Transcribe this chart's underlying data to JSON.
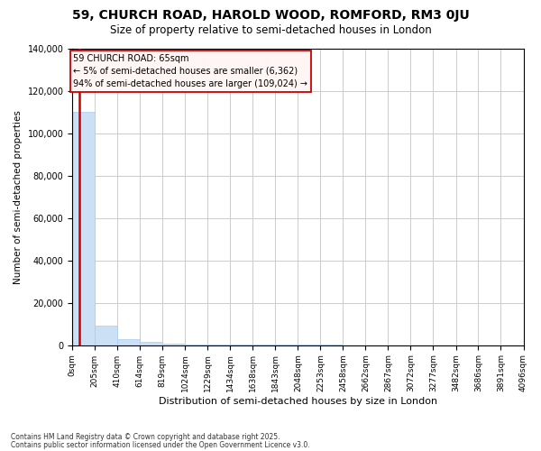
{
  "title": "59, CHURCH ROAD, HAROLD WOOD, ROMFORD, RM3 0JU",
  "subtitle": "Size of property relative to semi-detached houses in London",
  "xlabel": "Distribution of semi-detached houses by size in London",
  "ylabel": "Number of semi-detached properties",
  "footnote1": "Contains HM Land Registry data © Crown copyright and database right 2025.",
  "footnote2": "Contains public sector information licensed under the Open Government Licence v3.0.",
  "annotation_title": "59 CHURCH ROAD: 65sqm",
  "annotation_line1": "← 5% of semi-detached houses are smaller (6,362)",
  "annotation_line2": "94% of semi-detached houses are larger (109,024) →",
  "property_size": 65,
  "bar_color": "#cce0f5",
  "bar_edge_color": "#aaccee",
  "vline_color": "#cc0000",
  "ylim": [
    0,
    140000
  ],
  "yticks": [
    0,
    20000,
    40000,
    60000,
    80000,
    100000,
    120000,
    140000
  ],
  "bin_edges": [
    0,
    205,
    410,
    614,
    819,
    1024,
    1229,
    1434,
    1638,
    1843,
    2048,
    2253,
    2458,
    2662,
    2867,
    3072,
    3277,
    3482,
    3686,
    3891,
    4096
  ],
  "bar_heights": [
    110000,
    9000,
    3000,
    1500,
    800,
    400,
    250,
    150,
    100,
    80,
    60,
    45,
    35,
    25,
    20,
    15,
    12,
    10,
    8,
    6
  ],
  "background_color": "#ffffff",
  "grid_color": "#cccccc"
}
